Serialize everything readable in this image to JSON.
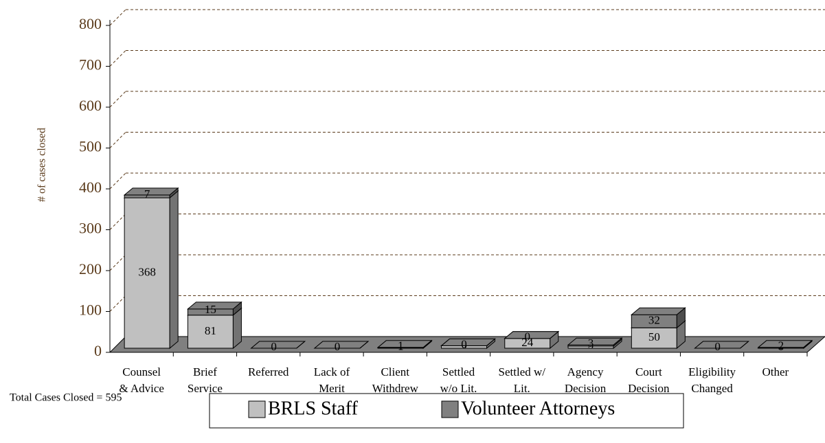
{
  "chart_data": {
    "type": "bar3d_stacked",
    "ylabel": "# of cases closed",
    "note": "Total Cases Closed = 595",
    "categories": [
      [
        "Counsel",
        "& Advice"
      ],
      [
        "Brief",
        "Service"
      ],
      [
        "Referred"
      ],
      [
        "Lack of",
        "Merit"
      ],
      [
        "Client",
        "Withdrew"
      ],
      [
        "Settled",
        "w/o Lit."
      ],
      [
        "Settled w/",
        "Lit."
      ],
      [
        "Agency",
        "Decision"
      ],
      [
        "Court",
        "Decision"
      ],
      [
        "Eligibility",
        "Changed"
      ],
      [
        "Other"
      ]
    ],
    "series": [
      {
        "name": "BRLS Staff",
        "color": "#c0c0c0",
        "values": [
          368,
          81,
          0,
          0,
          1,
          6,
          24,
          5,
          50,
          0,
          0
        ]
      },
      {
        "name": "Volunteer Attorneys",
        "color": "#808080",
        "values": [
          7,
          15,
          0,
          0,
          1,
          0,
          0,
          3,
          32,
          0,
          2
        ]
      }
    ],
    "ylim": [
      0,
      800
    ],
    "yticks": [
      0,
      100,
      200,
      300,
      400,
      500,
      600,
      700,
      800
    ],
    "grid": true
  }
}
